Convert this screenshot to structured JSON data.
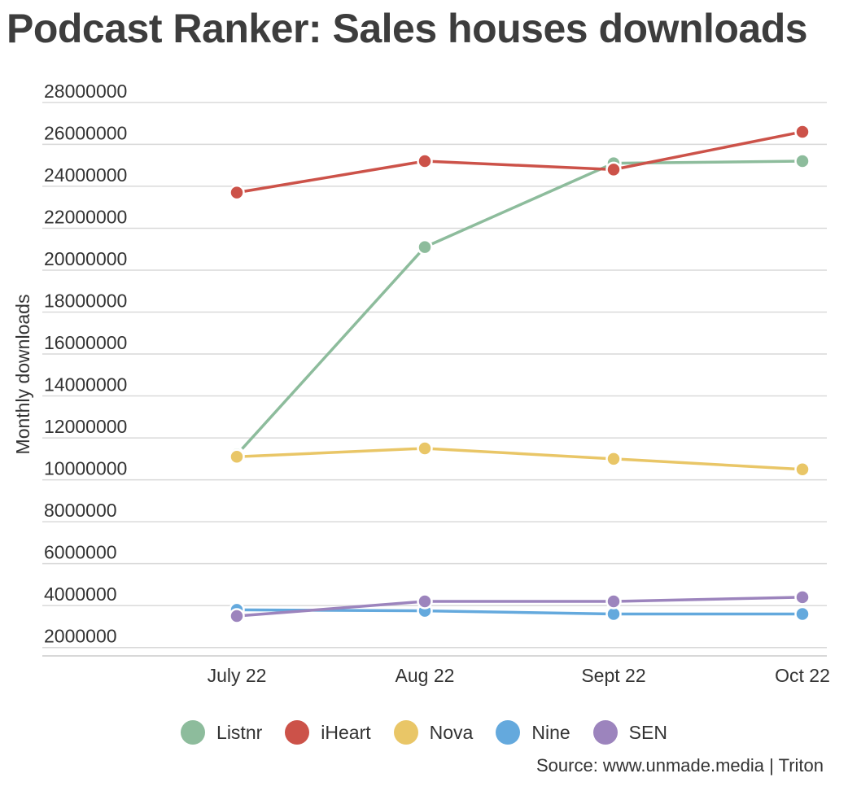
{
  "chart_data": {
    "type": "line",
    "title": "Podcast Ranker: Sales houses downloads",
    "ylabel": "Monthly downloads",
    "xlabel": "",
    "categories": [
      "July 22",
      "Aug 22",
      "Sept 22",
      "Oct 22"
    ],
    "yticks": [
      2000000,
      4000000,
      6000000,
      8000000,
      10000000,
      12000000,
      14000000,
      16000000,
      18000000,
      20000000,
      22000000,
      24000000,
      26000000,
      28000000
    ],
    "ylim": [
      1600000,
      28500000
    ],
    "grid": true,
    "legend_position": "bottom",
    "series": [
      {
        "name": "Listnr",
        "color": "#8dbc9c",
        "values": [
          11200000,
          21100000,
          25100000,
          25200000
        ]
      },
      {
        "name": "iHeart",
        "color": "#cc5249",
        "values": [
          23700000,
          25200000,
          24800000,
          26600000
        ]
      },
      {
        "name": "Nova",
        "color": "#e9c667",
        "values": [
          11100000,
          11500000,
          11000000,
          10500000
        ]
      },
      {
        "name": "Nine",
        "color": "#64a9dd",
        "values": [
          3800000,
          3750000,
          3600000,
          3600000
        ]
      },
      {
        "name": "SEN",
        "color": "#9c84bd",
        "values": [
          3500000,
          4200000,
          4200000,
          4400000
        ]
      }
    ],
    "source": "Source: www.unmade.media | Triton"
  }
}
